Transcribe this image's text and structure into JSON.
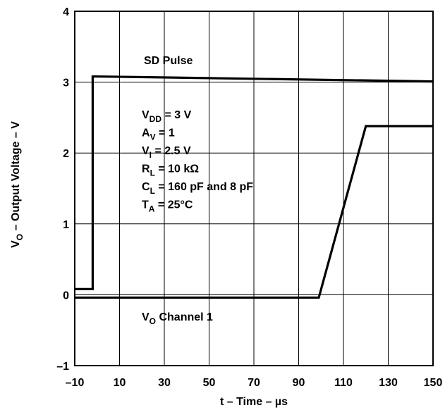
{
  "chart_data": {
    "type": "line",
    "xlabel": "t – Time – µs",
    "ylabel_main": "V",
    "ylabel_sub": "O",
    "ylabel_rest": " – Output Voltage – V",
    "xlim": [
      -10,
      150
    ],
    "ylim": [
      -1,
      4
    ],
    "xticks": [
      -10,
      10,
      30,
      50,
      70,
      90,
      110,
      130,
      150
    ],
    "yticks": [
      -1,
      0,
      1,
      2,
      3,
      4
    ],
    "grid": true,
    "series": [
      {
        "name": "SD Pulse",
        "x": [
          -10,
          -2,
          -2,
          0,
          150
        ],
        "y": [
          0.08,
          0.08,
          3.08,
          3.08,
          3.01
        ]
      },
      {
        "name": "V_O Channel 1",
        "x": [
          -10,
          99,
          120,
          150
        ],
        "y": [
          -0.04,
          -0.04,
          2.38,
          2.38
        ]
      }
    ],
    "annotations": {
      "sd_pulse": "SD Pulse",
      "channel_main": "V",
      "channel_sub": "O",
      "channel_rest": " Channel 1",
      "conditions": [
        {
          "main": "V",
          "sub": "DD",
          "rest": " = 3 V"
        },
        {
          "main": "A",
          "sub": "V",
          "rest": " = 1"
        },
        {
          "main": "V",
          "sub": "I",
          "rest": " = 2.5 V"
        },
        {
          "main": "R",
          "sub": "L",
          "rest": " = 10 kΩ"
        },
        {
          "main": "C",
          "sub": "L",
          "rest": " = 160 pF and 8 pF"
        },
        {
          "main": "T",
          "sub": "A",
          "rest": " = 25°C"
        }
      ]
    }
  }
}
